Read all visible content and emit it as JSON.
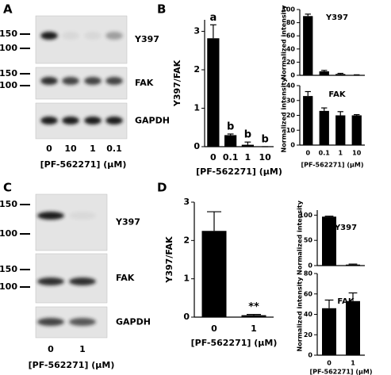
{
  "panel_labels": [
    "A",
    "B",
    "C",
    "D"
  ],
  "blots": [
    {
      "bands": [
        {
          "label": "Y397",
          "markers": [
            150,
            100
          ]
        },
        {
          "label": "FAK",
          "markers": [
            150,
            100
          ]
        },
        {
          "label": "GAPDH",
          "markers": []
        }
      ],
      "lanes": [
        "0",
        "10",
        "1",
        "0.1"
      ],
      "xlabel": "[PF-562271] (μM)"
    },
    {
      "bands": [
        {
          "label": "Y397",
          "markers": [
            150,
            100
          ]
        },
        {
          "label": "FAK",
          "markers": [
            150,
            100
          ]
        },
        {
          "label": "GAPDH",
          "markers": []
        }
      ],
      "lanes": [
        "0",
        "1"
      ],
      "xlabel": "[PF-562271] (μM)"
    }
  ],
  "chart_data": [
    {
      "type": "bar",
      "ylabel": "Y397/FAK",
      "xlabel": "[PF-562271] (μM)",
      "categories": [
        "0",
        "0.1",
        "1",
        "10"
      ],
      "values": [
        2.82,
        0.3,
        0.05,
        0.0
      ],
      "errors": [
        0.35,
        0.03,
        0.07,
        0.0
      ],
      "annotations": [
        "a",
        "b",
        "b",
        "b"
      ],
      "color": "#000000",
      "ylim": [
        0,
        3.3
      ],
      "yticks": [
        0,
        1,
        2,
        3
      ]
    },
    {
      "type": "bar",
      "title": "Y397",
      "ylabel": "Normalized intensity",
      "categories": [
        null,
        null,
        null,
        null
      ],
      "values": [
        90,
        6,
        2,
        0.5
      ],
      "errors": [
        3,
        1.5,
        1,
        0.3
      ],
      "color": "#000000",
      "ylim": [
        0,
        100
      ],
      "yticks": [
        0,
        20,
        40,
        60,
        80,
        100
      ]
    },
    {
      "type": "bar",
      "title": "FAK",
      "ylabel": "Normalized intensity",
      "xlabel": "[PF-562271] (μM)",
      "categories": [
        "0",
        "0.1",
        "1",
        "10"
      ],
      "values": [
        33,
        23,
        20,
        20
      ],
      "errors": [
        3,
        2,
        2.5,
        0.5
      ],
      "color": "#000000",
      "ylim": [
        0,
        40
      ],
      "yticks": [
        0,
        10,
        20,
        30,
        40
      ]
    },
    {
      "type": "bar",
      "ylabel": "Y397/FAK",
      "xlabel": "[PF-562271] (μM)",
      "categories": [
        "0",
        "1"
      ],
      "values": [
        2.25,
        0.05
      ],
      "errors": [
        0.5,
        0.02
      ],
      "annotations": [
        null,
        "**"
      ],
      "color": "#000000",
      "ylim": [
        0,
        3
      ],
      "yticks": [
        0,
        1,
        2,
        3
      ]
    },
    {
      "type": "bar",
      "title": "Y397",
      "ylabel": "Normalized intensity",
      "categories": [
        null,
        null
      ],
      "values": [
        97,
        2
      ],
      "errors": [
        1,
        1
      ],
      "color": "#000000",
      "ylim": [
        0,
        110
      ],
      "yticks": [
        0,
        50,
        100
      ]
    },
    {
      "type": "bar",
      "title": "FAK",
      "ylabel": "Normalized intensity",
      "xlabel": "[PF-562271] (μM)",
      "categories": [
        "0",
        "1"
      ],
      "values": [
        46,
        53
      ],
      "errors": [
        8,
        8
      ],
      "color": "#000000",
      "ylim": [
        0,
        80
      ],
      "yticks": [
        0,
        20,
        40,
        60,
        80
      ]
    }
  ]
}
